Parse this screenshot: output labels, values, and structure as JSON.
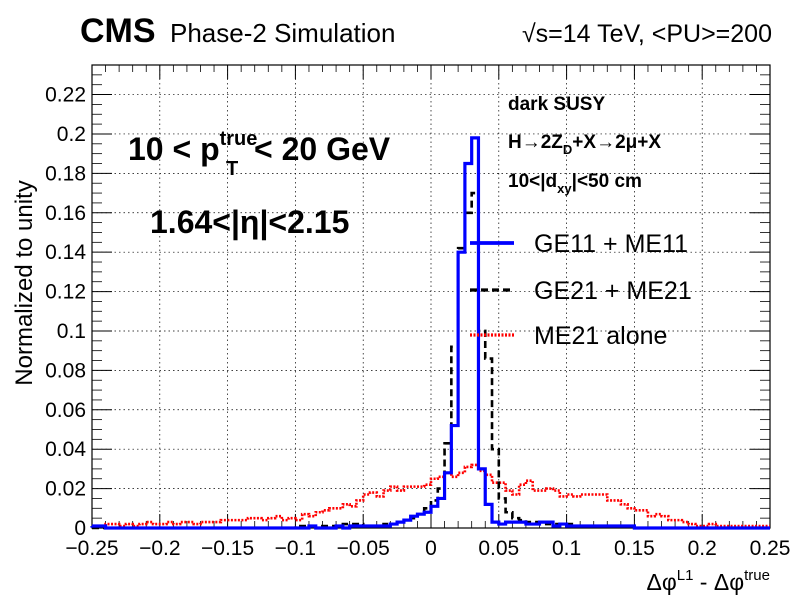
{
  "header": {
    "experiment": "CMS",
    "subtitle": "Phase-2 Simulation",
    "conditions": "√s=14 TeV, <PU>=200"
  },
  "annotations": {
    "pt_cut": {
      "prefix": "10 < p",
      "sup": "true",
      "sub": "T",
      "suffix": "< 20 GeV"
    },
    "eta_cut": "1.64<|η|<2.15",
    "model": "dark SUSY",
    "process": {
      "p1": "H→2Z",
      "sub": "D",
      "p2": "+X→2μ+X"
    },
    "dxy": {
      "p1": "10<|d",
      "sub": "xy",
      "p2": "|<50 cm"
    }
  },
  "colors": {
    "ge11": "#0000ff",
    "ge21": "#000000",
    "me21": "#ff0000"
  },
  "chart_data": {
    "type": "histogram",
    "xlabel": {
      "main": "Δφ",
      "sup1": "L1",
      "mid": " - Δφ",
      "sup2": "true"
    },
    "ylabel": "Normalized to unity",
    "xlim": [
      -0.25,
      0.25
    ],
    "ylim": [
      0,
      0.235
    ],
    "grid": true,
    "legend_position": "right",
    "x_ticks": [
      -0.25,
      -0.2,
      -0.15,
      -0.1,
      -0.05,
      0,
      0.05,
      0.1,
      0.15,
      0.2,
      0.25
    ],
    "x_tick_labels": [
      "−0.25",
      "−0.2",
      "−0.15",
      "−0.1",
      "−0.05",
      "0",
      "0.05",
      "0.1",
      "0.15",
      "0.2",
      "0.25"
    ],
    "y_ticks": [
      0,
      0.02,
      0.04,
      0.06,
      0.08,
      0.1,
      0.12,
      0.14,
      0.16,
      0.18,
      0.2,
      0.22
    ],
    "y_tick_labels": [
      "0",
      "0.02",
      "0.04",
      "0.06",
      "0.08",
      "0.1",
      "0.12",
      "0.14",
      "0.16",
      "0.18",
      "0.2",
      "0.22"
    ],
    "bin_edges": [
      -0.25,
      0.25
    ],
    "n_bins": 100,
    "series": [
      {
        "name": "GE11 + ME11",
        "key": "ge11",
        "dash": "solid",
        "values": [
          0.001,
          0.001,
          0,
          0,
          0,
          0,
          0,
          0,
          0,
          0,
          0,
          0,
          0,
          0,
          0,
          0,
          0,
          0,
          0,
          0,
          0,
          0,
          0,
          0,
          0,
          0,
          0,
          0,
          0,
          0,
          0,
          0,
          0.001,
          0,
          0,
          0,
          0.001,
          0,
          0.001,
          0.001,
          0.001,
          0.001,
          0.001,
          0.001,
          0.002,
          0.003,
          0.004,
          0.006,
          0.007,
          0.008,
          0.011,
          0.015,
          0.028,
          0.052,
          0.14,
          0.185,
          0.198,
          0.03,
          0.012,
          0.003,
          0.002,
          0.003,
          0.003,
          0.003,
          0.002,
          0.002,
          0.003,
          0.003,
          0.001,
          0.002,
          0.001,
          0.001,
          0.001,
          0.001,
          0.001,
          0.001,
          0.001,
          0.001,
          0.001,
          0.001,
          0,
          0,
          0,
          0,
          0,
          0,
          0,
          0,
          0,
          0,
          0,
          0,
          0,
          0,
          0,
          0,
          0,
          0,
          0,
          0
        ]
      },
      {
        "name": "GE21 + ME21",
        "key": "ge21",
        "dash": "dashed",
        "values": [
          0,
          0,
          0,
          0,
          0,
          0,
          0,
          0,
          0,
          0,
          0,
          0,
          0,
          0,
          0,
          0,
          0,
          0,
          0,
          0,
          0,
          0,
          0,
          0,
          0,
          0,
          0,
          0,
          0,
          0,
          0.001,
          0.001,
          0.001,
          0.001,
          0.001,
          0.001,
          0.001,
          0.002,
          0.002,
          0.002,
          0.001,
          0.001,
          0.001,
          0.002,
          0.002,
          0.003,
          0.004,
          0.005,
          0.007,
          0.01,
          0.014,
          0.02,
          0.043,
          0.092,
          0.142,
          0.16,
          0.17,
          0.1,
          0.086,
          0.04,
          0.015,
          0.008,
          0.005,
          0.004,
          0.003,
          0.003,
          0.003,
          0.002,
          0.002,
          0.002,
          0.002,
          0.001,
          0.001,
          0.001,
          0.001,
          0.001,
          0.001,
          0.001,
          0.001,
          0.001,
          0,
          0,
          0,
          0,
          0,
          0,
          0,
          0,
          0,
          0,
          0,
          0,
          0,
          0,
          0,
          0,
          0,
          0,
          0,
          0
        ]
      },
      {
        "name": "ME21 alone",
        "key": "me21",
        "dash": "dotted",
        "values": [
          0.001,
          0.001,
          0.002,
          0.002,
          0.001,
          0.002,
          0.001,
          0.002,
          0.003,
          0.002,
          0.002,
          0.003,
          0.002,
          0.003,
          0.003,
          0.002,
          0.003,
          0.003,
          0.003,
          0.004,
          0.004,
          0.004,
          0.004,
          0.005,
          0.005,
          0.004,
          0.005,
          0.006,
          0.004,
          0.005,
          0.004,
          0.007,
          0.006,
          0.008,
          0.009,
          0.01,
          0.01,
          0.012,
          0.011,
          0.014,
          0.017,
          0.018,
          0.016,
          0.019,
          0.021,
          0.019,
          0.021,
          0.021,
          0.021,
          0.022,
          0.025,
          0.026,
          0.028,
          0.026,
          0.028,
          0.031,
          0.032,
          0.029,
          0.027,
          0.023,
          0.023,
          0.019,
          0.017,
          0.022,
          0.024,
          0.019,
          0.019,
          0.02,
          0.019,
          0.016,
          0.017,
          0.016,
          0.017,
          0.017,
          0.017,
          0.017,
          0.014,
          0.014,
          0.012,
          0.01,
          0.009,
          0.009,
          0.006,
          0.007,
          0.006,
          0.004,
          0.004,
          0.003,
          0.002,
          0.001,
          0.001,
          0.002,
          0.001,
          0.001,
          0.001,
          0.001,
          0.001,
          0.001,
          0.001,
          0.001
        ]
      }
    ]
  }
}
